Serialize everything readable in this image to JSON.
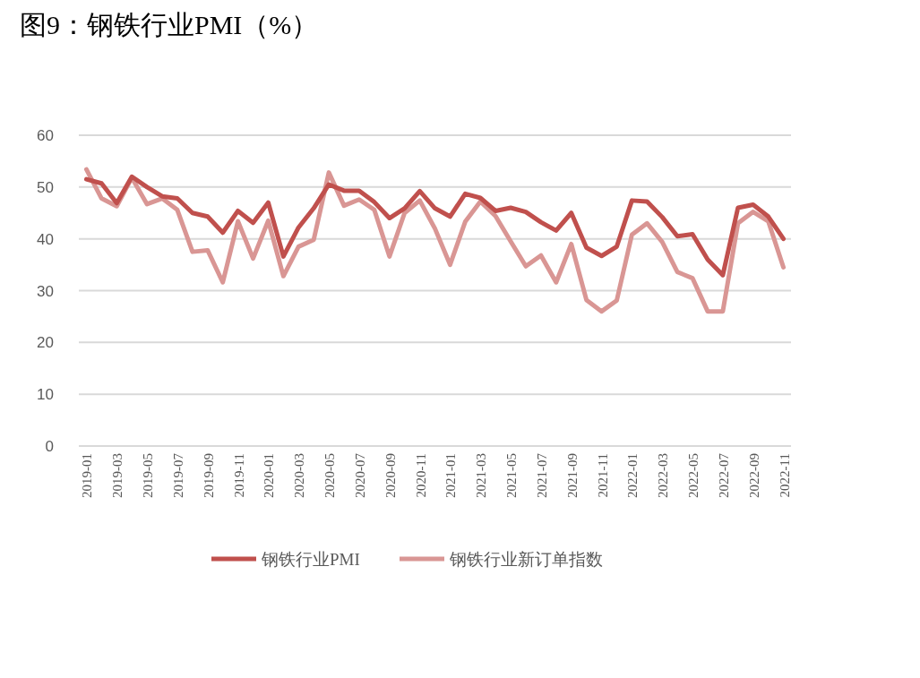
{
  "chart_data": {
    "type": "line",
    "title": "图9：钢铁行业PMI（%）",
    "categories": [
      "2019-01",
      null,
      "2019-03",
      null,
      "2019-05",
      null,
      "2019-07",
      null,
      "2019-09",
      null,
      "2019-11",
      null,
      "2020-01",
      null,
      "2020-03",
      null,
      "2020-05",
      null,
      "2020-07",
      null,
      "2020-09",
      null,
      "2020-11",
      null,
      "2021-01",
      null,
      "2021-03",
      null,
      "2021-05",
      null,
      "2021-07",
      null,
      "2021-09",
      null,
      "2021-11",
      null,
      "2022-01",
      null,
      "2022-03",
      null,
      "2022-05",
      null,
      "2022-07",
      null,
      "2022-09",
      null,
      "2022-11"
    ],
    "series": [
      {
        "name": "钢铁行业PMI",
        "color": "#c0504d",
        "values": [
          51.5,
          50.7,
          46.9,
          52.0,
          50.0,
          48.2,
          47.8,
          45.0,
          44.3,
          41.2,
          45.4,
          43.1,
          47.0,
          36.6,
          42.2,
          45.9,
          50.5,
          49.3,
          49.3,
          47.1,
          44.0,
          45.9,
          49.2,
          45.9,
          44.3,
          48.7,
          47.9,
          45.4,
          46.0,
          45.2,
          43.2,
          41.6,
          45.0,
          38.3,
          36.7,
          38.5,
          47.4,
          47.2,
          44.2,
          40.5,
          40.9,
          36.0,
          33.0,
          46.0,
          46.6,
          44.3,
          40.0
        ]
      },
      {
        "name": "钢铁行业新订单指数",
        "color": "#d99694",
        "values": [
          53.4,
          47.8,
          46.3,
          51.8,
          46.7,
          47.8,
          45.6,
          37.5,
          37.8,
          31.6,
          43.4,
          36.2,
          43.5,
          32.8,
          38.5,
          39.8,
          52.8,
          46.4,
          47.6,
          45.6,
          36.6,
          45.0,
          47.4,
          42.0,
          35.0,
          43.3,
          47.2,
          44.4,
          39.5,
          34.7,
          36.8,
          31.6,
          39.0,
          28.2,
          26.0,
          28.1,
          40.8,
          43.0,
          39.4,
          33.6,
          32.4,
          26.0,
          26.0,
          43.0,
          45.2,
          43.4,
          34.5
        ]
      }
    ],
    "ylim": [
      0,
      60
    ],
    "yticks": [
      0,
      10,
      20,
      30,
      40,
      50,
      60
    ],
    "grid": "y",
    "legend": "bottom"
  }
}
